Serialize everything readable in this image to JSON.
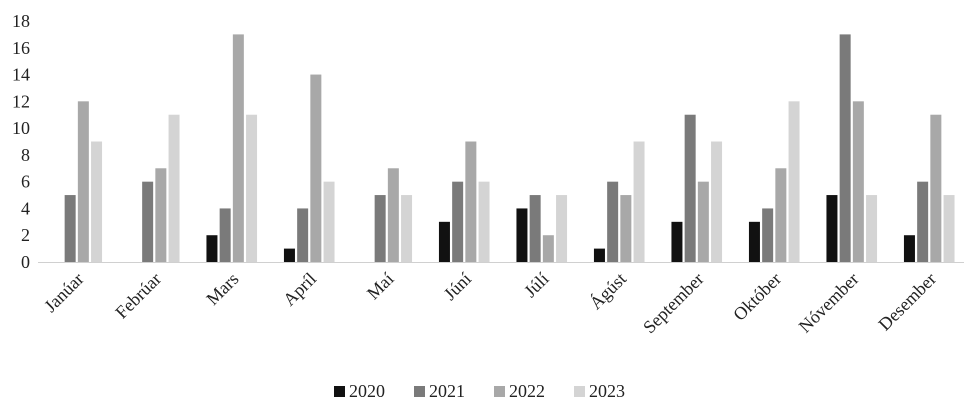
{
  "chart_data": {
    "type": "bar",
    "title": "",
    "xlabel": "",
    "ylabel": "",
    "ylim": [
      0,
      18
    ],
    "yticks": [
      0,
      2,
      4,
      6,
      8,
      10,
      12,
      14,
      16,
      18
    ],
    "grid": false,
    "legend_position": "bottom",
    "categories": [
      "Janúar",
      "Febrúar",
      "Mars",
      "Apríl",
      "Maí",
      "Júní",
      "Júlí",
      "Ágúst",
      "September",
      "Október",
      "Nóvember",
      "Desember"
    ],
    "series": [
      {
        "name": "2020",
        "color": "#111111",
        "values": [
          0,
          0,
          2,
          1,
          0,
          3,
          4,
          1,
          3,
          3,
          5,
          2
        ]
      },
      {
        "name": "2021",
        "color": "#7a7a7a",
        "values": [
          5,
          6,
          4,
          4,
          5,
          6,
          5,
          6,
          11,
          4,
          17,
          6
        ]
      },
      {
        "name": "2022",
        "color": "#a8a8a8",
        "values": [
          12,
          7,
          17,
          14,
          7,
          9,
          2,
          5,
          6,
          7,
          12,
          11
        ]
      },
      {
        "name": "2023",
        "color": "#d4d4d4",
        "values": [
          9,
          11,
          11,
          6,
          5,
          6,
          5,
          9,
          9,
          12,
          5,
          5
        ]
      }
    ]
  }
}
